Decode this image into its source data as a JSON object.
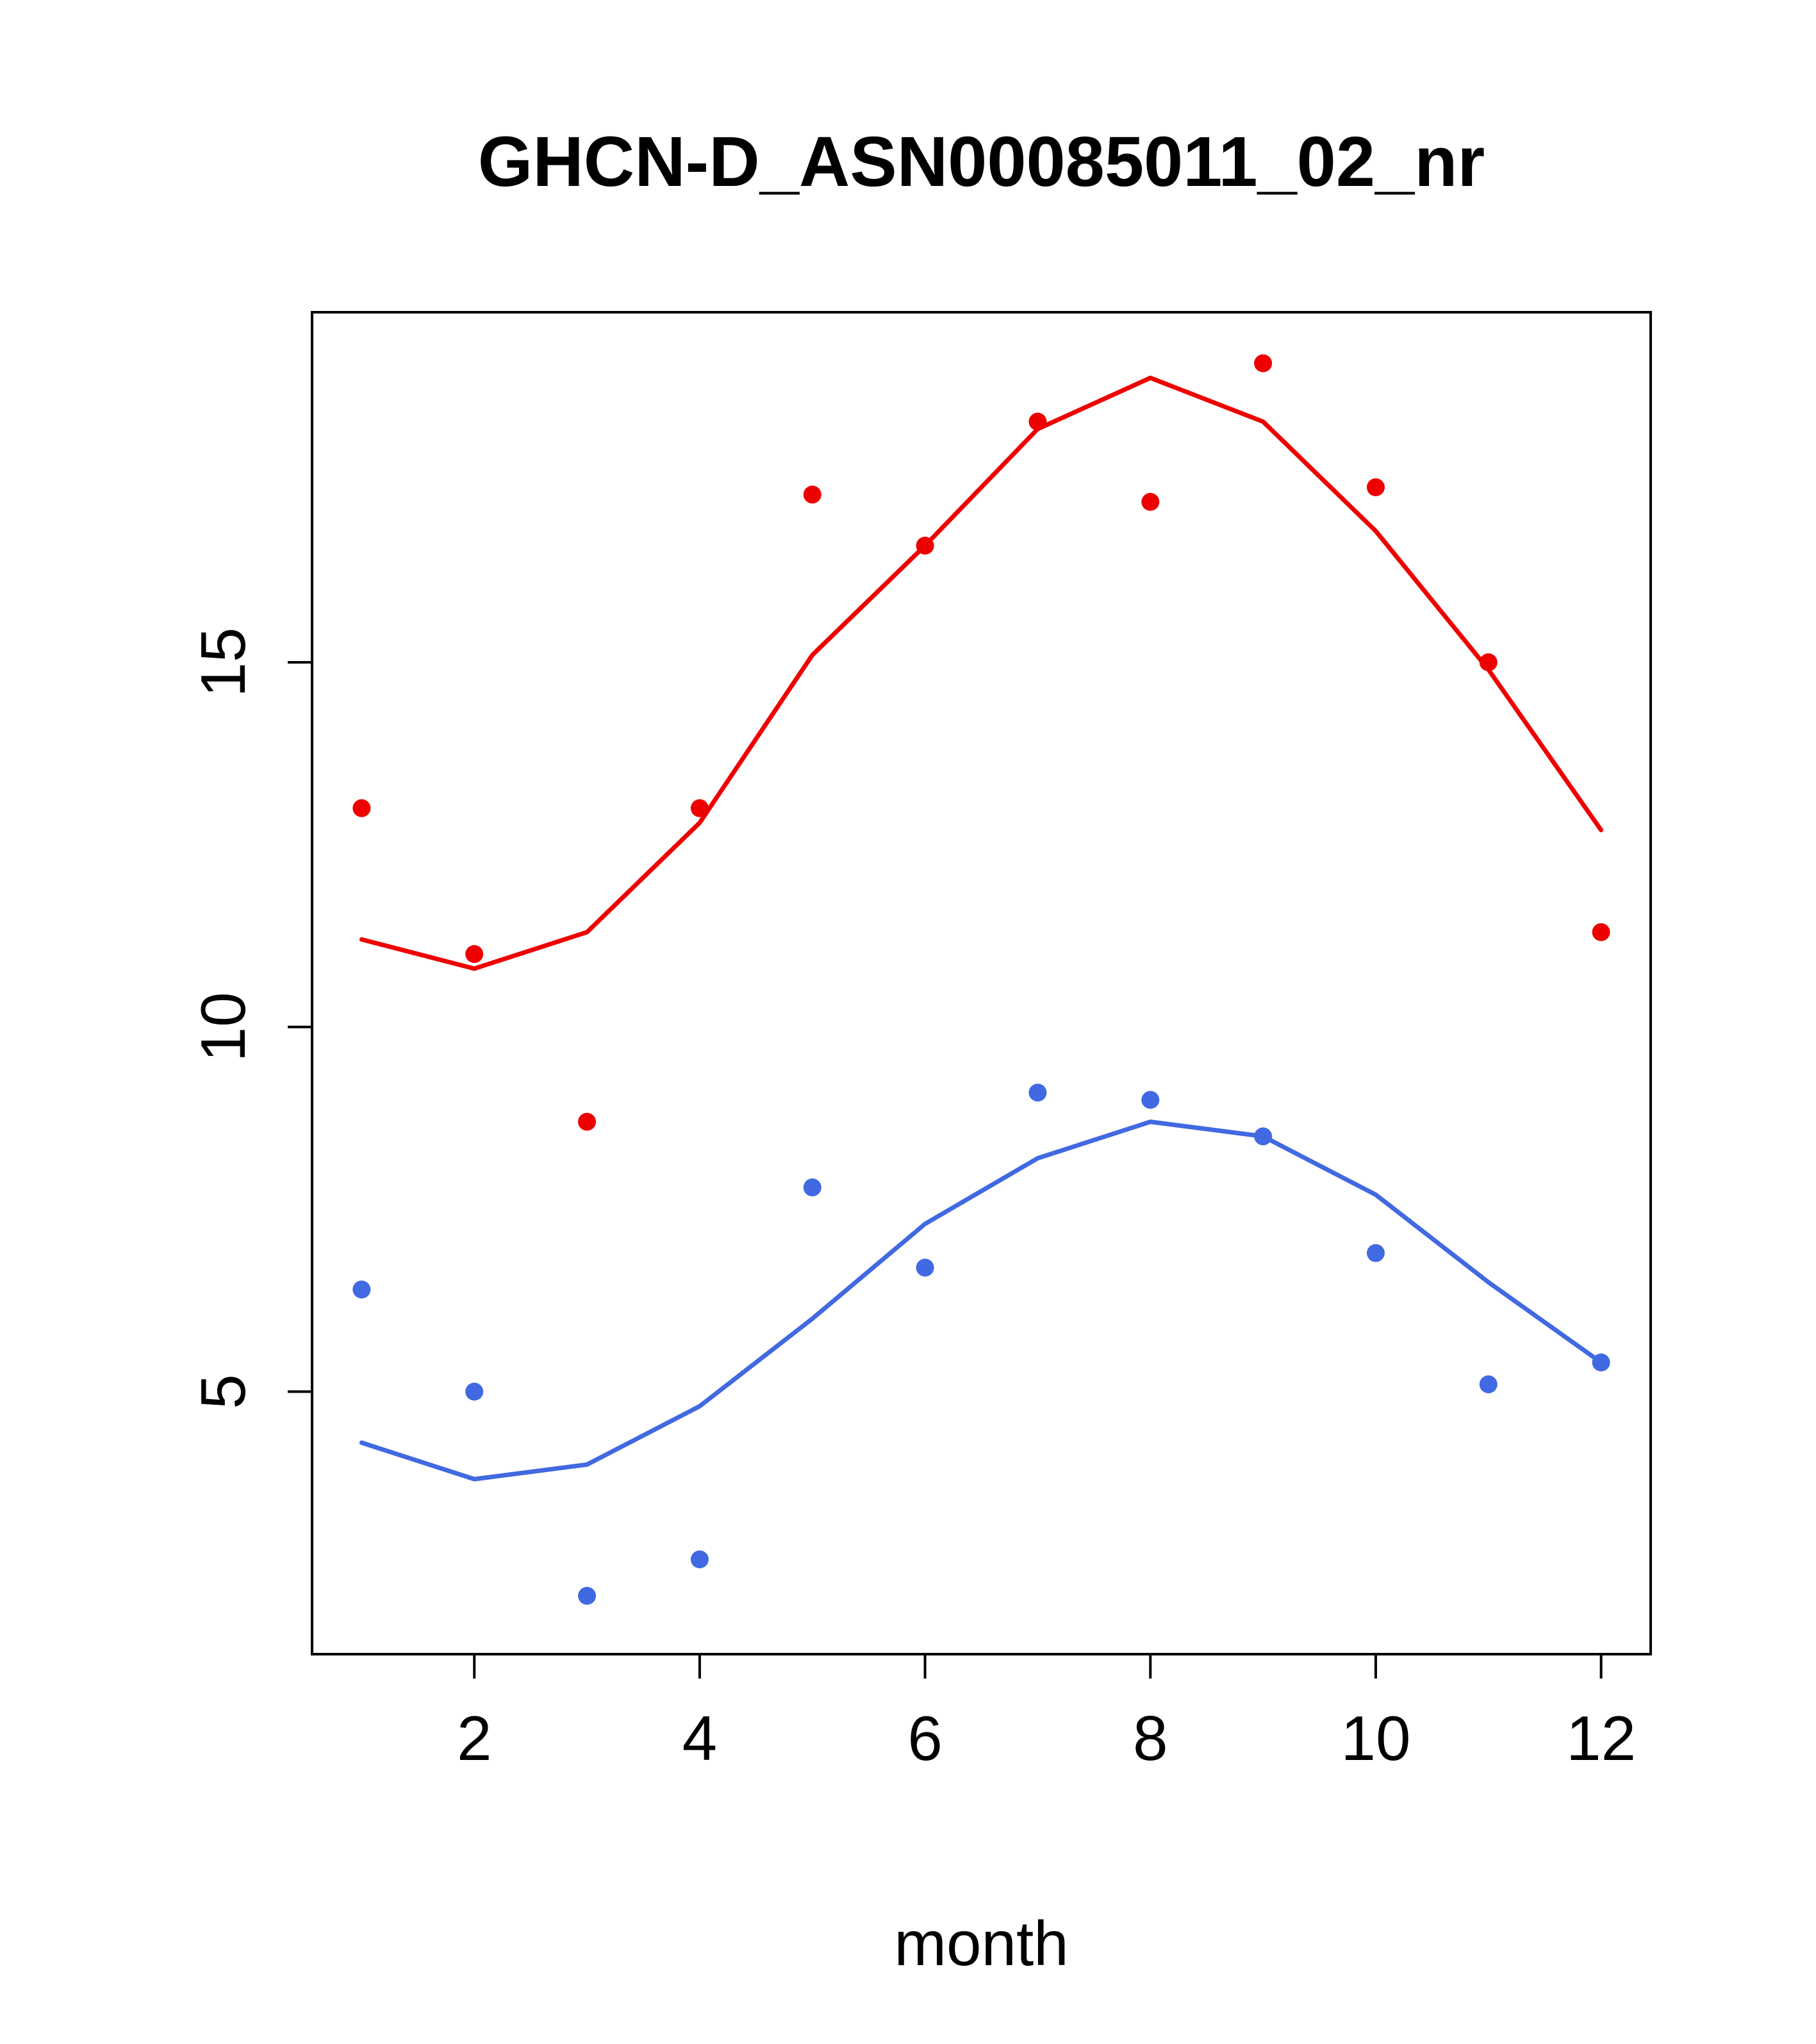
{
  "chart_data": {
    "type": "scatter",
    "title": "GHCN-D_ASN00085011_02_nr",
    "xlabel": "month",
    "ylabel": "",
    "x": [
      1,
      2,
      3,
      4,
      5,
      6,
      7,
      8,
      9,
      10,
      11,
      12
    ],
    "xticks": [
      2,
      4,
      6,
      8,
      10,
      12
    ],
    "yticks": [
      5,
      10,
      15
    ],
    "xlim": [
      0.56,
      12.44
    ],
    "ylim": [
      1.4,
      19.8
    ],
    "grid": "off",
    "legend": "none",
    "colors": {
      "series_red": "#ee0000",
      "series_blue": "#4169e1"
    },
    "series": [
      {
        "name": "red-line",
        "render": "line",
        "color": "#ee0000",
        "values": [
          11.2,
          10.8,
          11.3,
          12.8,
          15.1,
          16.6,
          18.2,
          18.9,
          18.3,
          16.8,
          14.9,
          12.7
        ]
      },
      {
        "name": "blue-line",
        "render": "line",
        "color": "#4169e1",
        "values": [
          4.3,
          3.8,
          4.0,
          4.8,
          6.0,
          7.3,
          8.2,
          8.7,
          8.5,
          7.7,
          6.5,
          5.4
        ]
      },
      {
        "name": "red-points",
        "render": "points",
        "color": "#ee0000",
        "values": [
          13.0,
          11.0,
          8.7,
          13.0,
          17.3,
          16.6,
          18.3,
          17.2,
          19.1,
          17.4,
          15.0,
          11.3
        ]
      },
      {
        "name": "blue-points",
        "render": "points",
        "color": "#4169e1",
        "values": [
          6.4,
          5.0,
          2.2,
          2.7,
          7.8,
          6.7,
          9.1,
          9.0,
          8.5,
          6.9,
          5.1,
          5.4
        ]
      }
    ]
  }
}
